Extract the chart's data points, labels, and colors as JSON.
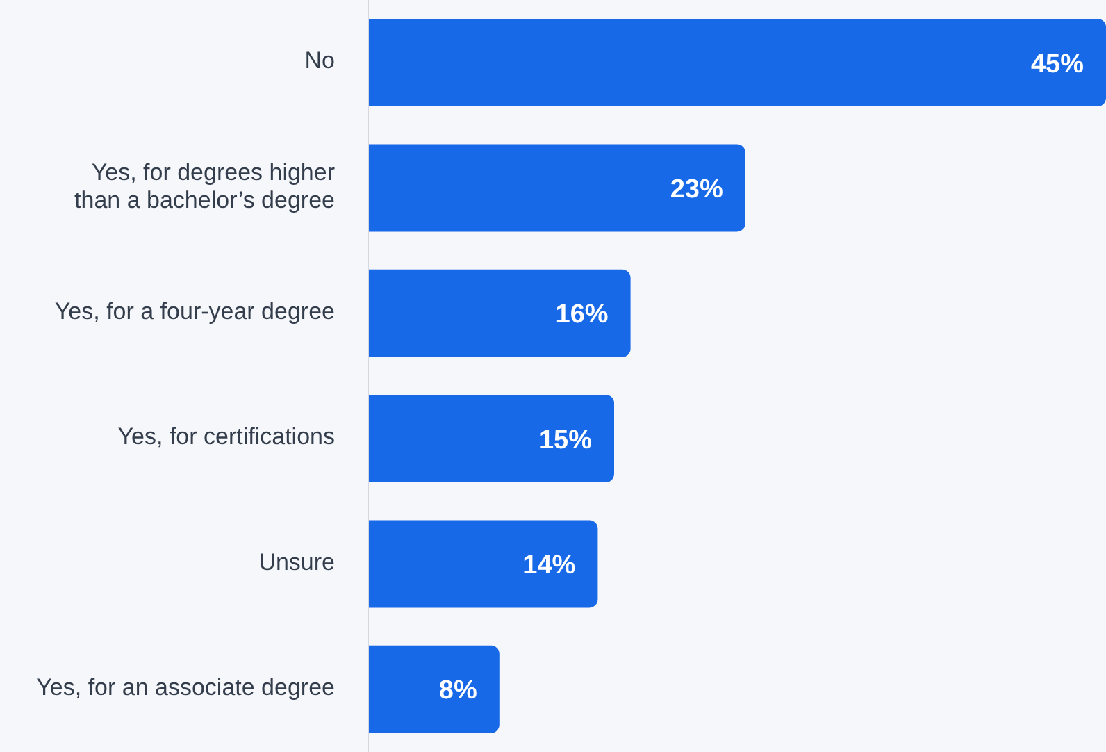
{
  "chart_data": {
    "type": "bar",
    "orientation": "horizontal",
    "categories": [
      "No",
      "Yes, for degrees higher than a bachelor’s degree",
      "Yes, for a four-year degree",
      "Yes, for certifications",
      "Unsure",
      "Yes, for an associate degree"
    ],
    "values": [
      45,
      23,
      16,
      15,
      14,
      8
    ],
    "value_labels": [
      "45%",
      "23%",
      "16%",
      "15%",
      "14%",
      "8%"
    ],
    "color": "#1769e8"
  }
}
